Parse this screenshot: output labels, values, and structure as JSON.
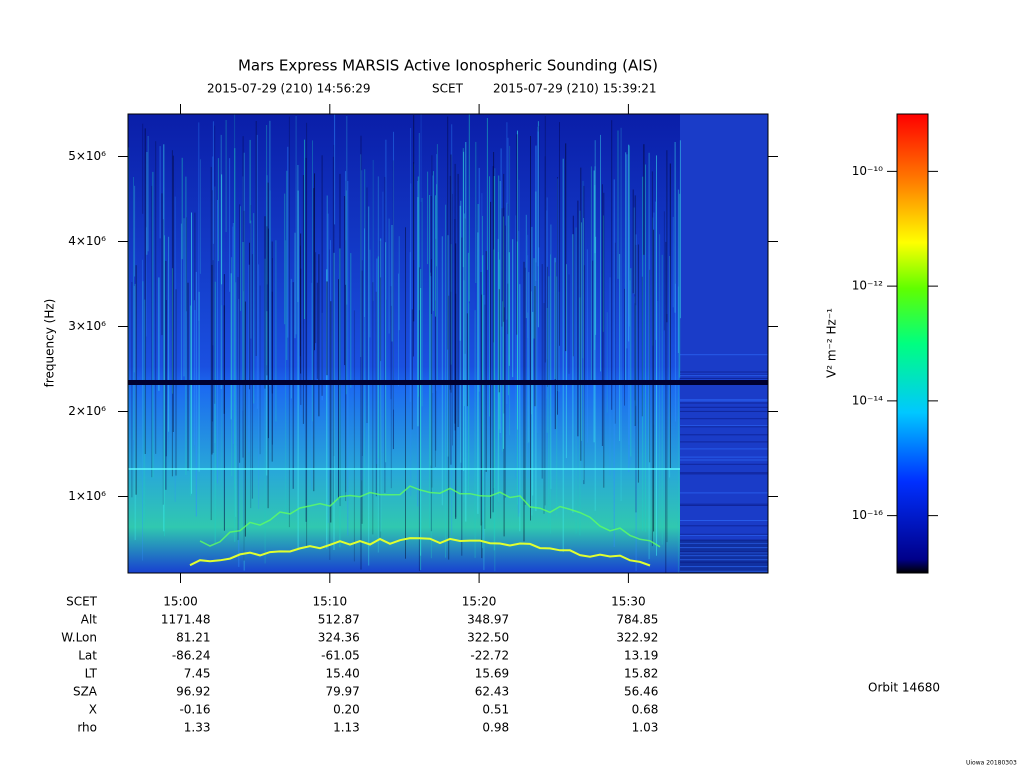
{
  "chart_data": {
    "type": "spectrogram",
    "title": "Mars Express MARSIS Active Ionospheric Sounding (AIS)",
    "subtitle_start": "2015-07-29 (210) 14:56:29",
    "subtitle_label": "SCET",
    "subtitle_end": "2015-07-29 (210) 15:39:21",
    "y_label": "frequency (Hz)",
    "xlim": [
      53789,
      56361
    ],
    "xticks": [
      {
        "value": 54000,
        "label": "15:00"
      },
      {
        "value": 54600,
        "label": "15:10"
      },
      {
        "value": 55200,
        "label": "15:20"
      },
      {
        "value": 55800,
        "label": "15:30"
      }
    ],
    "ylim": [
      100000,
      5500000
    ],
    "yticks": [
      {
        "value": 1000000,
        "label": "1×10⁶"
      },
      {
        "value": 2000000,
        "label": "2×10⁶"
      },
      {
        "value": 3000000,
        "label": "3×10⁶"
      },
      {
        "value": 4000000,
        "label": "4×10⁶"
      },
      {
        "value": 5000000,
        "label": "5×10⁶"
      }
    ],
    "colorbar": {
      "label": "V² m⁻² Hz⁻¹",
      "log": true,
      "lim": [
        1e-17,
        1e-09
      ],
      "ticks": [
        {
          "value": 1e-16,
          "label": "10⁻¹⁶"
        },
        {
          "value": 1e-14,
          "label": "10⁻¹⁴"
        },
        {
          "value": 1e-12,
          "label": "10⁻¹²"
        },
        {
          "value": 1e-10,
          "label": "10⁻¹⁰"
        }
      ]
    },
    "ephemeris": {
      "time_label": "SCET",
      "rows": [
        {
          "label": "Alt",
          "values": [
            "1171.48",
            "512.87",
            "348.97",
            "784.85"
          ]
        },
        {
          "label": "W.Lon",
          "values": [
            "81.21",
            "324.36",
            "322.50",
            "322.92"
          ]
        },
        {
          "label": "Lat",
          "values": [
            "-86.24",
            "-61.05",
            "-22.72",
            "13.19"
          ]
        },
        {
          "label": "LT",
          "values": [
            "7.45",
            "15.40",
            "15.69",
            "15.82"
          ]
        },
        {
          "label": "SZA",
          "values": [
            "96.92",
            "79.97",
            "62.43",
            "56.46"
          ]
        },
        {
          "label": "X",
          "values": [
            "-0.16",
            "0.20",
            "0.51",
            "0.68"
          ]
        },
        {
          "label": "rho",
          "values": [
            "1.33",
            "1.13",
            "0.98",
            "1.03"
          ]
        }
      ]
    },
    "orbit": "Orbit 14680",
    "credit": "Uiowa 20180303"
  }
}
